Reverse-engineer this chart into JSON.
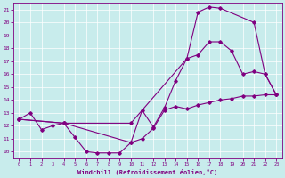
{
  "xlabel": "Windchill (Refroidissement éolien,°C)",
  "bg_color": "#c8ecec",
  "line_color": "#800080",
  "ylim": [
    9.5,
    21.5
  ],
  "xlim": [
    -0.5,
    23.5
  ],
  "yticks": [
    10,
    11,
    12,
    13,
    14,
    15,
    16,
    17,
    18,
    19,
    20,
    21
  ],
  "xticks": [
    0,
    1,
    2,
    3,
    4,
    5,
    6,
    7,
    8,
    9,
    10,
    11,
    12,
    13,
    14,
    15,
    16,
    17,
    18,
    19,
    20,
    21,
    22,
    23
  ],
  "line1_x": [
    0,
    1,
    2,
    3,
    4,
    5,
    6,
    7,
    8,
    9,
    10,
    11,
    12,
    13,
    14,
    15,
    16,
    17,
    18,
    19,
    20,
    21,
    22,
    23
  ],
  "line1_y": [
    12.5,
    13.0,
    11.7,
    12.0,
    12.2,
    11.1,
    10.0,
    9.9,
    9.9,
    9.9,
    10.7,
    11.0,
    11.8,
    13.2,
    13.5,
    13.3,
    13.6,
    13.8,
    14.0,
    14.1,
    14.3,
    14.3,
    14.4,
    14.4
  ],
  "line2_x": [
    0,
    4,
    10,
    15,
    16,
    17,
    18,
    21,
    22,
    23
  ],
  "line2_y": [
    12.5,
    12.2,
    12.2,
    17.2,
    20.8,
    21.2,
    21.1,
    20.0,
    16.0,
    14.4
  ],
  "line3_x": [
    0,
    4,
    10,
    11,
    12,
    13,
    14,
    15,
    16,
    17,
    18,
    19,
    20,
    21,
    22,
    23
  ],
  "line3_y": [
    12.5,
    12.2,
    10.7,
    13.2,
    11.9,
    13.4,
    15.5,
    17.2,
    17.5,
    18.5,
    18.5,
    17.8,
    16.0,
    16.2,
    16.0,
    14.4
  ]
}
